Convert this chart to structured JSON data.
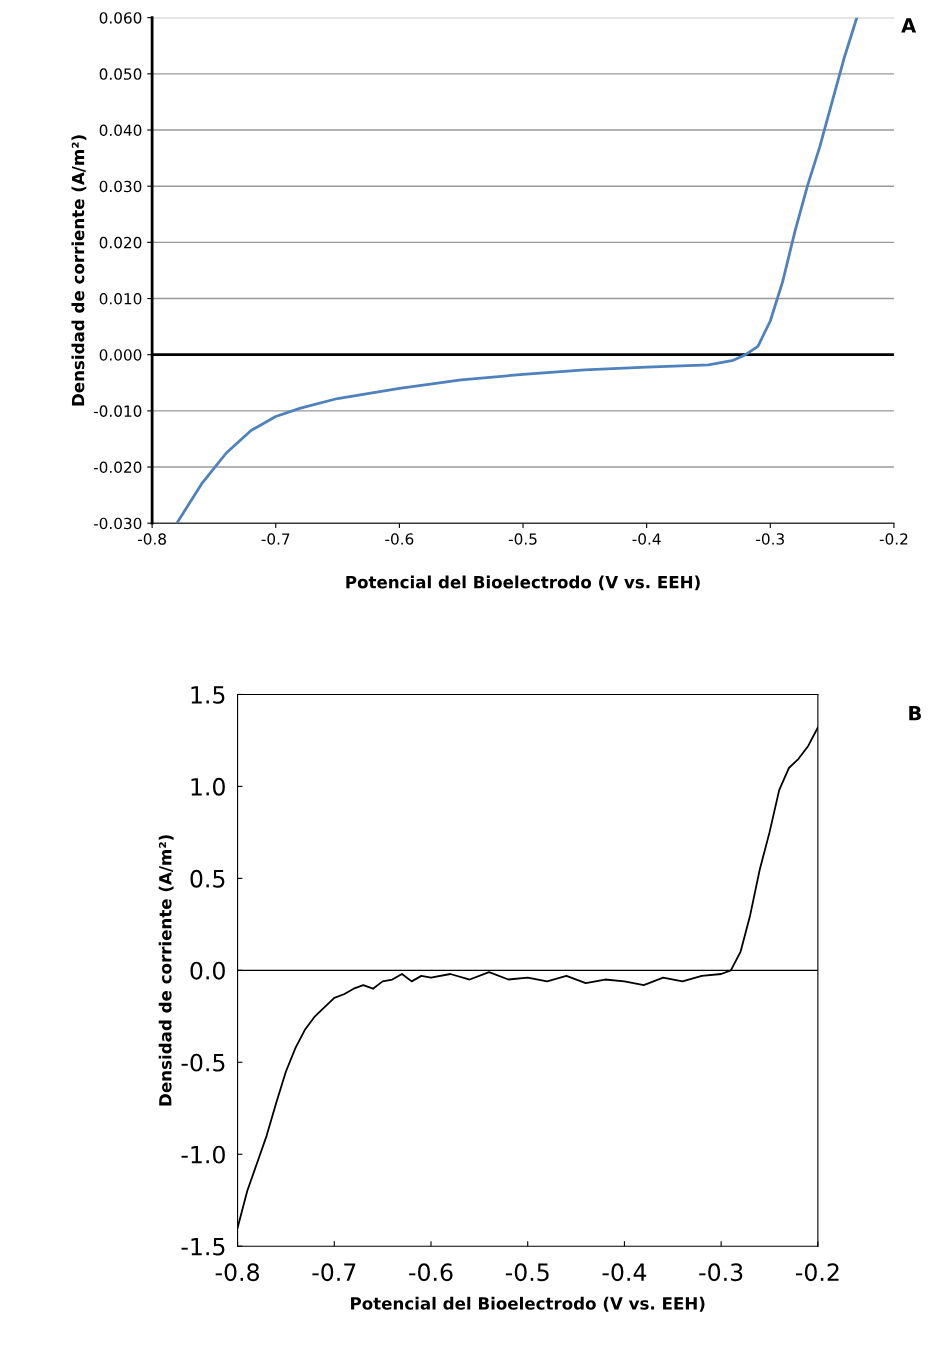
{
  "chart_data": [
    {
      "type": "line",
      "xlabel": "Potencial del Bioelectrodo (V vs. EEH)",
      "ylabel": "Densidad de corriente (A/m²)",
      "annotations": [
        "A"
      ],
      "series": [
        {
          "color": "#4f81bd",
          "x": [
            -0.78,
            -0.76,
            -0.74,
            -0.72,
            -0.7,
            -0.68,
            -0.65,
            -0.6,
            -0.55,
            -0.5,
            -0.45,
            -0.4,
            -0.35,
            -0.33,
            -0.32,
            -0.31,
            -0.3,
            -0.29,
            -0.28,
            -0.27,
            -0.26,
            -0.25,
            -0.24,
            -0.23
          ],
          "values": [
            -0.03,
            -0.023,
            -0.0175,
            -0.0135,
            -0.011,
            -0.0095,
            -0.0078,
            -0.006,
            -0.0045,
            -0.0035,
            -0.0027,
            -0.0022,
            -0.0018,
            -0.001,
            0.0,
            0.0015,
            0.006,
            0.013,
            0.022,
            0.03,
            0.037,
            0.045,
            0.053,
            0.06
          ]
        }
      ],
      "xlim": [
        -0.8,
        -0.2
      ],
      "xticks": [
        {
          "value": -0.8,
          "label": "-0.8"
        },
        {
          "value": -0.7,
          "label": "-0.7"
        },
        {
          "value": -0.6,
          "label": "-0.6"
        },
        {
          "value": -0.5,
          "label": "-0.5"
        },
        {
          "value": -0.4,
          "label": "-0.4"
        },
        {
          "value": -0.3,
          "label": "-0.3"
        },
        {
          "value": -0.2,
          "label": "-0.2"
        }
      ],
      "ylim": [
        -0.03,
        0.06
      ],
      "yticks": [
        {
          "value": -0.03,
          "label": "-0.030"
        },
        {
          "value": -0.02,
          "label": "-0.020"
        },
        {
          "value": -0.01,
          "label": "-0.010"
        },
        {
          "value": 0,
          "label": "0.000"
        },
        {
          "value": 0.01,
          "label": "0.010"
        },
        {
          "value": 0.02,
          "label": "0.020"
        },
        {
          "value": 0.03,
          "label": "0.030"
        },
        {
          "value": 0.04,
          "label": "0.040"
        },
        {
          "value": 0.05,
          "label": "0.050"
        },
        {
          "value": 0.06,
          "label": "0.060"
        }
      ],
      "grid": "y",
      "ref_lines": [
        {
          "axis": "y",
          "value": 0,
          "color": "#000000"
        }
      ]
    },
    {
      "type": "line",
      "xlabel": "Potencial del Bioelectrodo (V vs. EEH)",
      "ylabel": "Densidad de corriente (A/m²)",
      "annotations": [
        "B"
      ],
      "series": [
        {
          "color": "#000000",
          "x": [
            -0.8,
            -0.79,
            -0.78,
            -0.77,
            -0.76,
            -0.75,
            -0.74,
            -0.73,
            -0.72,
            -0.71,
            -0.7,
            -0.69,
            -0.68,
            -0.67,
            -0.66,
            -0.65,
            -0.64,
            -0.63,
            -0.62,
            -0.61,
            -0.6,
            -0.58,
            -0.56,
            -0.54,
            -0.52,
            -0.5,
            -0.48,
            -0.46,
            -0.44,
            -0.42,
            -0.4,
            -0.38,
            -0.36,
            -0.34,
            -0.32,
            -0.3,
            -0.29,
            -0.28,
            -0.27,
            -0.26,
            -0.25,
            -0.24,
            -0.23,
            -0.22,
            -0.21,
            -0.2
          ],
          "values": [
            -1.4,
            -1.2,
            -1.05,
            -0.9,
            -0.72,
            -0.55,
            -0.42,
            -0.32,
            -0.25,
            -0.2,
            -0.15,
            -0.13,
            -0.1,
            -0.08,
            -0.1,
            -0.06,
            -0.05,
            -0.02,
            -0.06,
            -0.03,
            -0.04,
            -0.02,
            -0.05,
            -0.01,
            -0.05,
            -0.04,
            -0.06,
            -0.03,
            -0.07,
            -0.05,
            -0.06,
            -0.08,
            -0.04,
            -0.06,
            -0.03,
            -0.02,
            0.0,
            0.1,
            0.3,
            0.55,
            0.75,
            0.98,
            1.1,
            1.15,
            1.22,
            1.32
          ]
        }
      ],
      "xlim": [
        -0.8,
        -0.2
      ],
      "xticks": [
        {
          "value": -0.8,
          "label": "-0.8"
        },
        {
          "value": -0.7,
          "label": "-0.7"
        },
        {
          "value": -0.6,
          "label": "-0.6"
        },
        {
          "value": -0.5,
          "label": "-0.5"
        },
        {
          "value": -0.4,
          "label": "-0.4"
        },
        {
          "value": -0.3,
          "label": "-0.3"
        },
        {
          "value": -0.2,
          "label": "-0.2"
        }
      ],
      "ylim": [
        -1.5,
        1.5
      ],
      "yticks": [
        {
          "value": -1.5,
          "label": "-1.5"
        },
        {
          "value": -1.0,
          "label": "-1.0"
        },
        {
          "value": -0.5,
          "label": "-0.5"
        },
        {
          "value": 0,
          "label": "0.0"
        },
        {
          "value": 0.5,
          "label": "0.5"
        },
        {
          "value": 1.0,
          "label": "1.0"
        },
        {
          "value": 1.5,
          "label": "1.5"
        }
      ],
      "grid": false,
      "ref_lines": [
        {
          "axis": "y",
          "value": 0,
          "color": "#000000"
        }
      ]
    }
  ]
}
